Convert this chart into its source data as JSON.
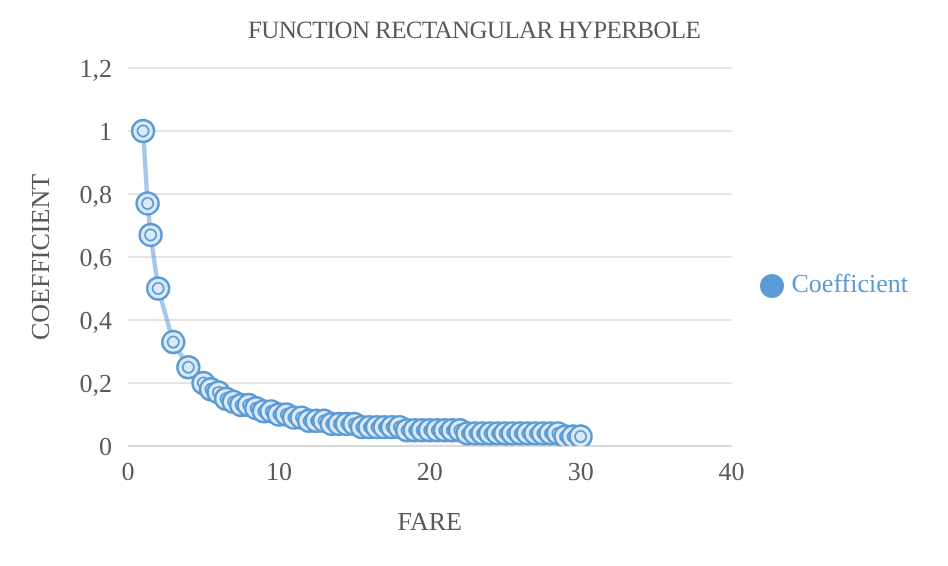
{
  "chart_data": {
    "type": "line",
    "title": "FUNCTION RECTANGULAR HYPERBOLE",
    "xlabel": "FARE",
    "ylabel": "COEFFICIENT",
    "xlim": [
      0,
      40
    ],
    "xticks": [
      0,
      10,
      20,
      30,
      40
    ],
    "ylim": [
      0,
      1.2
    ],
    "yticks": [
      0,
      {
        "value": 0.2,
        "label": "0,2"
      },
      {
        "value": 0.4,
        "label": "0,4"
      },
      {
        "value": 0.6,
        "label": "0,6"
      },
      {
        "value": 0.8,
        "label": "0,8"
      },
      1,
      {
        "value": 1.2,
        "label": "1,2"
      }
    ],
    "grid": "y",
    "legend": "right",
    "marker": "circle",
    "line_style": "solid",
    "series": [
      {
        "name": "Coefficient",
        "color": "#5b9bd5",
        "x": [
          1,
          1.3,
          1.5,
          2,
          3,
          4,
          5,
          5.5,
          6,
          6.5,
          7,
          7.5,
          8,
          8.5,
          9,
          9.5,
          10,
          10.5,
          11,
          11.5,
          12,
          12.5,
          13,
          13.5,
          14,
          14.5,
          15,
          15.5,
          16,
          16.5,
          17,
          17.5,
          18,
          18.5,
          19,
          19.5,
          20,
          20.5,
          21,
          21.5,
          22,
          22.5,
          23,
          23.5,
          24,
          24.5,
          25,
          25.5,
          26,
          26.5,
          27,
          27.5,
          28,
          28.5,
          29,
          29.5,
          30
        ],
        "values": [
          1,
          0.77,
          0.67,
          0.5,
          0.33,
          0.25,
          0.2,
          0.18,
          0.17,
          0.15,
          0.14,
          0.13,
          0.13,
          0.12,
          0.11,
          0.11,
          0.1,
          0.1,
          0.09,
          0.09,
          0.08,
          0.08,
          0.08,
          0.07,
          0.07,
          0.07,
          0.07,
          0.06,
          0.06,
          0.06,
          0.06,
          0.06,
          0.06,
          0.05,
          0.05,
          0.05,
          0.05,
          0.05,
          0.05,
          0.05,
          0.05,
          0.04,
          0.04,
          0.04,
          0.04,
          0.04,
          0.04,
          0.04,
          0.04,
          0.04,
          0.04,
          0.04,
          0.04,
          0.04,
          0.03,
          0.03,
          0.03
        ]
      }
    ]
  }
}
